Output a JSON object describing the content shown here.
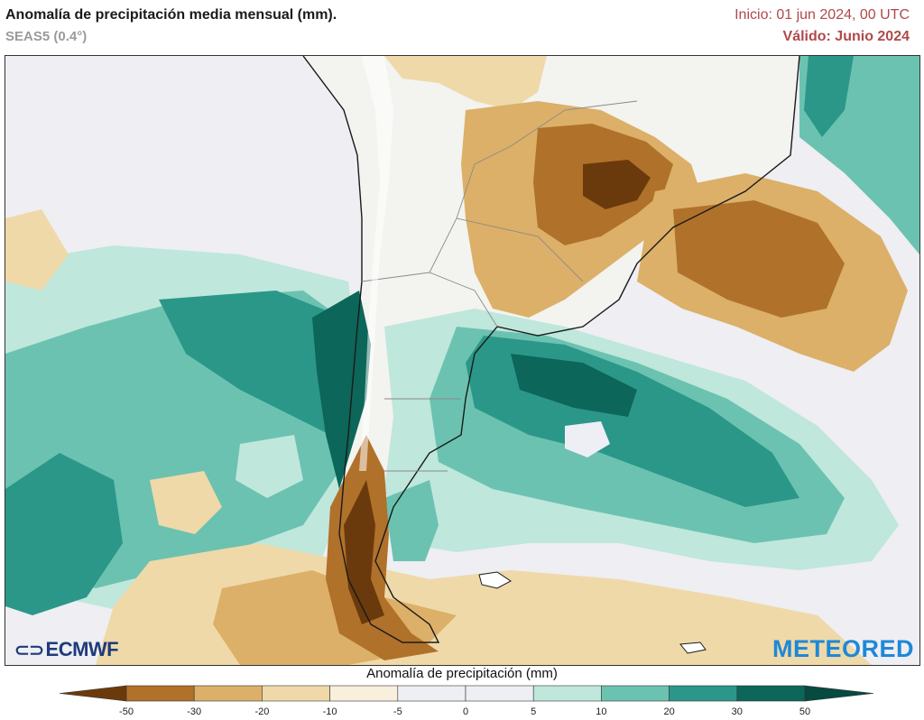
{
  "header": {
    "title": "Anomalía de precipitación media mensual (mm).",
    "subtitle": "SEAS5 (0.4°)",
    "init": "Inicio: 01 jun 2024, 00 UTC",
    "valid": "Válido: Junio 2024"
  },
  "logos": {
    "left": "ECMWF",
    "right": "METEORED"
  },
  "colorbar": {
    "label": "Anomalía de precipitación (mm)",
    "ticks": [
      "-50",
      "-30",
      "-20",
      "-10",
      "-5",
      "0",
      "5",
      "10",
      "20",
      "30",
      "50"
    ],
    "colors": [
      "#6b3a0c",
      "#b0712a",
      "#dcb068",
      "#efd9a8",
      "#f8efdc",
      "#eeeef5",
      "#eeeef5",
      "#bfe7dc",
      "#6cc2b0",
      "#2a9789",
      "#0c6659",
      "#064a40"
    ]
  }
}
